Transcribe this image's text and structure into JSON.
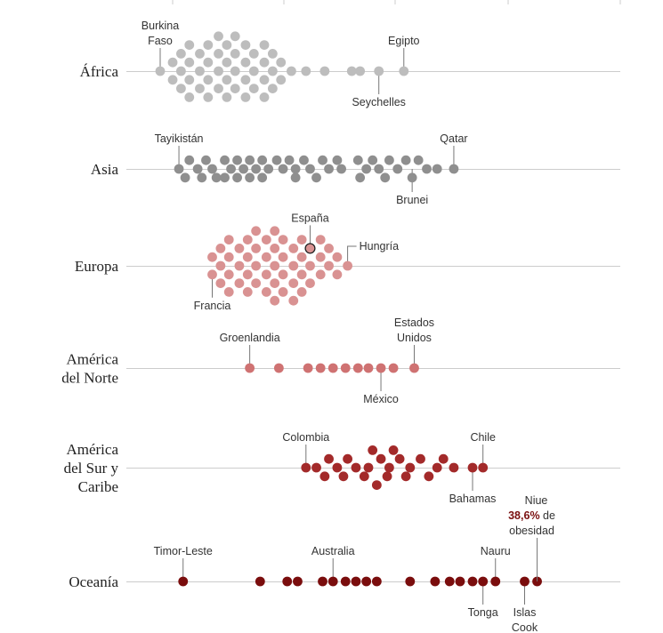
{
  "colors": {
    "africa": "#bdbdbd",
    "asia": "#8f8f8f",
    "europa": "#d99292",
    "america_norte": "#cf7272",
    "america_sur": "#a32a2a",
    "oceania": "#7a0d0d",
    "axis": "#cccccc"
  },
  "chart_data": {
    "type": "beeswarm",
    "title": "",
    "xlabel": "",
    "ylabel": "",
    "note": "",
    "annotation": {
      "country": "Niue",
      "value_text": "38,6%",
      "suffix_text": "de obesidad"
    },
    "regions": [
      {
        "name_lines": [
          "África"
        ],
        "color": "#bdbdbd",
        "points": [
          {
            "x": 3.0,
            "y": 0
          },
          {
            "x": 3.6,
            "y": 1
          },
          {
            "x": 3.6,
            "y": -1
          },
          {
            "x": 4.0,
            "y": 2
          },
          {
            "x": 4.0,
            "y": 0
          },
          {
            "x": 4.0,
            "y": -2
          },
          {
            "x": 4.4,
            "y": 3
          },
          {
            "x": 4.4,
            "y": 1
          },
          {
            "x": 4.4,
            "y": -1
          },
          {
            "x": 4.4,
            "y": -3
          },
          {
            "x": 4.9,
            "y": 2
          },
          {
            "x": 4.9,
            "y": 0
          },
          {
            "x": 4.9,
            "y": -2
          },
          {
            "x": 5.3,
            "y": 3
          },
          {
            "x": 5.3,
            "y": 1
          },
          {
            "x": 5.3,
            "y": -1
          },
          {
            "x": 5.3,
            "y": -3
          },
          {
            "x": 5.8,
            "y": 4
          },
          {
            "x": 5.8,
            "y": 2
          },
          {
            "x": 5.8,
            "y": 0
          },
          {
            "x": 5.8,
            "y": -2
          },
          {
            "x": 6.2,
            "y": 3
          },
          {
            "x": 6.2,
            "y": 1
          },
          {
            "x": 6.2,
            "y": -1
          },
          {
            "x": 6.2,
            "y": -3
          },
          {
            "x": 6.6,
            "y": 4
          },
          {
            "x": 6.6,
            "y": 2
          },
          {
            "x": 6.6,
            "y": 0
          },
          {
            "x": 6.6,
            "y": -2
          },
          {
            "x": 7.1,
            "y": 3
          },
          {
            "x": 7.1,
            "y": 1
          },
          {
            "x": 7.1,
            "y": -1
          },
          {
            "x": 7.1,
            "y": -3
          },
          {
            "x": 7.5,
            "y": 2
          },
          {
            "x": 7.5,
            "y": 0
          },
          {
            "x": 7.5,
            "y": -2
          },
          {
            "x": 8.0,
            "y": 3
          },
          {
            "x": 8.0,
            "y": 1
          },
          {
            "x": 8.0,
            "y": -1
          },
          {
            "x": 8.0,
            "y": -3
          },
          {
            "x": 8.4,
            "y": 2
          },
          {
            "x": 8.4,
            "y": 0
          },
          {
            "x": 8.4,
            "y": -2
          },
          {
            "x": 8.8,
            "y": 1
          },
          {
            "x": 8.8,
            "y": -1
          },
          {
            "x": 9.3,
            "y": 0
          },
          {
            "x": 10.0,
            "y": 0
          },
          {
            "x": 10.9,
            "y": 0
          },
          {
            "x": 12.2,
            "y": 0
          },
          {
            "x": 12.6,
            "y": 0
          },
          {
            "x": 13.5,
            "y": 0
          },
          {
            "x": 14.7,
            "y": 0
          }
        ],
        "labels": [
          {
            "text_lines": [
              "Burkina",
              "Faso"
            ],
            "x": 3.0,
            "pos": "above"
          },
          {
            "text_lines": [
              "Egipto"
            ],
            "x": 14.7,
            "pos": "above"
          },
          {
            "text_lines": [
              "Seychelles"
            ],
            "x": 13.5,
            "pos": "below"
          }
        ]
      },
      {
        "name_lines": [
          "Asia"
        ],
        "color": "#8f8f8f",
        "points": [
          {
            "x": 3.9,
            "y": 0
          },
          {
            "x": 4.2,
            "y": -1
          },
          {
            "x": 4.4,
            "y": 1
          },
          {
            "x": 4.8,
            "y": 0
          },
          {
            "x": 5.0,
            "y": -1
          },
          {
            "x": 5.2,
            "y": 1
          },
          {
            "x": 5.5,
            "y": 0
          },
          {
            "x": 5.7,
            "y": -1
          },
          {
            "x": 6.1,
            "y": 1
          },
          {
            "x": 6.1,
            "y": -1
          },
          {
            "x": 6.4,
            "y": 0
          },
          {
            "x": 6.7,
            "y": 1
          },
          {
            "x": 6.7,
            "y": -1
          },
          {
            "x": 7.0,
            "y": 0
          },
          {
            "x": 7.3,
            "y": 1
          },
          {
            "x": 7.3,
            "y": -1
          },
          {
            "x": 7.6,
            "y": 0
          },
          {
            "x": 7.9,
            "y": 1
          },
          {
            "x": 7.9,
            "y": -1
          },
          {
            "x": 8.2,
            "y": 0
          },
          {
            "x": 8.6,
            "y": 1
          },
          {
            "x": 8.9,
            "y": 0
          },
          {
            "x": 9.2,
            "y": 1
          },
          {
            "x": 9.5,
            "y": 0
          },
          {
            "x": 9.5,
            "y": -1
          },
          {
            "x": 9.9,
            "y": 1
          },
          {
            "x": 10.2,
            "y": 0
          },
          {
            "x": 10.5,
            "y": -1
          },
          {
            "x": 10.8,
            "y": 1
          },
          {
            "x": 11.1,
            "y": 0
          },
          {
            "x": 11.5,
            "y": 1
          },
          {
            "x": 11.7,
            "y": 0
          },
          {
            "x": 12.5,
            "y": 1
          },
          {
            "x": 12.6,
            "y": -1
          },
          {
            "x": 12.9,
            "y": 0
          },
          {
            "x": 13.2,
            "y": 1
          },
          {
            "x": 13.5,
            "y": 0
          },
          {
            "x": 13.8,
            "y": -1
          },
          {
            "x": 14.0,
            "y": 1
          },
          {
            "x": 14.4,
            "y": 0
          },
          {
            "x": 14.8,
            "y": 1
          },
          {
            "x": 15.1,
            "y": -1
          },
          {
            "x": 15.4,
            "y": 1
          },
          {
            "x": 15.8,
            "y": 0
          },
          {
            "x": 16.3,
            "y": 0
          },
          {
            "x": 17.1,
            "y": 0
          }
        ],
        "labels": [
          {
            "text_lines": [
              "Tayikistán"
            ],
            "x": 3.9,
            "pos": "above"
          },
          {
            "text_lines": [
              "Qatar"
            ],
            "x": 17.1,
            "pos": "above"
          },
          {
            "text_lines": [
              "Brunei"
            ],
            "x": 15.1,
            "pos": "below"
          }
        ]
      },
      {
        "name_lines": [
          "Europa"
        ],
        "color": "#d99292",
        "points": [
          {
            "x": 5.5,
            "y": 1
          },
          {
            "x": 5.5,
            "y": -1
          },
          {
            "x": 5.9,
            "y": 2
          },
          {
            "x": 5.9,
            "y": 0
          },
          {
            "x": 5.9,
            "y": -2
          },
          {
            "x": 6.3,
            "y": 3
          },
          {
            "x": 6.3,
            "y": 1
          },
          {
            "x": 6.3,
            "y": -1
          },
          {
            "x": 6.3,
            "y": -3
          },
          {
            "x": 6.8,
            "y": 2
          },
          {
            "x": 6.8,
            "y": 0
          },
          {
            "x": 6.8,
            "y": -2
          },
          {
            "x": 7.2,
            "y": 3
          },
          {
            "x": 7.2,
            "y": 1
          },
          {
            "x": 7.2,
            "y": -1
          },
          {
            "x": 7.2,
            "y": -3
          },
          {
            "x": 7.6,
            "y": 4
          },
          {
            "x": 7.6,
            "y": 2
          },
          {
            "x": 7.6,
            "y": 0
          },
          {
            "x": 7.6,
            "y": -2
          },
          {
            "x": 8.1,
            "y": 3
          },
          {
            "x": 8.1,
            "y": 1
          },
          {
            "x": 8.1,
            "y": -1
          },
          {
            "x": 8.1,
            "y": -3
          },
          {
            "x": 8.5,
            "y": 4
          },
          {
            "x": 8.5,
            "y": 2
          },
          {
            "x": 8.5,
            "y": 0
          },
          {
            "x": 8.5,
            "y": -2
          },
          {
            "x": 8.5,
            "y": -4
          },
          {
            "x": 8.9,
            "y": 3
          },
          {
            "x": 8.9,
            "y": 1
          },
          {
            "x": 8.9,
            "y": -1
          },
          {
            "x": 8.9,
            "y": -3
          },
          {
            "x": 9.4,
            "y": 2
          },
          {
            "x": 9.4,
            "y": 0
          },
          {
            "x": 9.4,
            "y": -2
          },
          {
            "x": 9.4,
            "y": -4
          },
          {
            "x": 9.8,
            "y": 3
          },
          {
            "x": 9.8,
            "y": 1
          },
          {
            "x": 9.8,
            "y": -1
          },
          {
            "x": 9.8,
            "y": -3
          },
          {
            "x": 10.2,
            "y": 2
          },
          {
            "x": 10.2,
            "y": 0
          },
          {
            "x": 10.2,
            "y": -2
          },
          {
            "x": 10.7,
            "y": 3
          },
          {
            "x": 10.7,
            "y": 1
          },
          {
            "x": 10.7,
            "y": -1
          },
          {
            "x": 11.1,
            "y": 2
          },
          {
            "x": 11.1,
            "y": 0
          },
          {
            "x": 11.5,
            "y": 1
          },
          {
            "x": 11.5,
            "y": -1
          },
          {
            "x": 12.0,
            "y": 0
          }
        ],
        "labels": [
          {
            "text_lines": [
              "España"
            ],
            "x": 10.2,
            "y": 2,
            "pos": "above",
            "highlight": true
          },
          {
            "text_lines": [
              "Hungría"
            ],
            "x": 12.0,
            "pos": "right"
          },
          {
            "text_lines": [
              "Francia"
            ],
            "x": 5.5,
            "y": -1,
            "pos": "below"
          }
        ]
      },
      {
        "name_lines": [
          "América",
          "del Norte"
        ],
        "color": "#cf7272",
        "points": [
          {
            "x": 7.3,
            "y": 0
          },
          {
            "x": 8.7,
            "y": 0
          },
          {
            "x": 10.1,
            "y": 0
          },
          {
            "x": 10.7,
            "y": 0
          },
          {
            "x": 11.3,
            "y": 0
          },
          {
            "x": 11.9,
            "y": 0
          },
          {
            "x": 12.5,
            "y": 0
          },
          {
            "x": 13.0,
            "y": 0
          },
          {
            "x": 13.6,
            "y": 0
          },
          {
            "x": 14.2,
            "y": 0
          },
          {
            "x": 15.2,
            "y": 0
          }
        ],
        "labels": [
          {
            "text_lines": [
              "Groenlandia"
            ],
            "x": 7.3,
            "pos": "above"
          },
          {
            "text_lines": [
              "Estados",
              "Unidos"
            ],
            "x": 15.2,
            "pos": "above"
          },
          {
            "text_lines": [
              "México"
            ],
            "x": 13.6,
            "pos": "below"
          }
        ]
      },
      {
        "name_lines": [
          "América",
          "del Sur y",
          "Caribe"
        ],
        "color": "#a32a2a",
        "points": [
          {
            "x": 10.0,
            "y": 0
          },
          {
            "x": 10.5,
            "y": 0
          },
          {
            "x": 10.9,
            "y": -1
          },
          {
            "x": 11.1,
            "y": 1
          },
          {
            "x": 11.5,
            "y": 0
          },
          {
            "x": 11.8,
            "y": -1
          },
          {
            "x": 12.0,
            "y": 1
          },
          {
            "x": 12.4,
            "y": 0
          },
          {
            "x": 12.8,
            "y": -1
          },
          {
            "x": 13.0,
            "y": 0
          },
          {
            "x": 13.2,
            "y": 2
          },
          {
            "x": 13.4,
            "y": -2
          },
          {
            "x": 13.6,
            "y": 1
          },
          {
            "x": 13.9,
            "y": -1
          },
          {
            "x": 14.0,
            "y": 0
          },
          {
            "x": 14.2,
            "y": 2
          },
          {
            "x": 14.5,
            "y": 1
          },
          {
            "x": 14.8,
            "y": -1
          },
          {
            "x": 15.0,
            "y": 0
          },
          {
            "x": 15.5,
            "y": 1
          },
          {
            "x": 15.9,
            "y": -1
          },
          {
            "x": 16.3,
            "y": 0
          },
          {
            "x": 16.6,
            "y": 1
          },
          {
            "x": 17.1,
            "y": 0
          },
          {
            "x": 18.0,
            "y": 0
          },
          {
            "x": 18.5,
            "y": 0
          }
        ],
        "labels": [
          {
            "text_lines": [
              "Colombia"
            ],
            "x": 10.0,
            "pos": "above"
          },
          {
            "text_lines": [
              "Chile"
            ],
            "x": 18.5,
            "pos": "above"
          },
          {
            "text_lines": [
              "Bahamas"
            ],
            "x": 18.0,
            "pos": "below"
          }
        ]
      },
      {
        "name_lines": [
          "Oceanía"
        ],
        "color": "#7a0d0d",
        "points": [
          {
            "x": 4.1,
            "y": 0
          },
          {
            "x": 7.8,
            "y": 0
          },
          {
            "x": 9.1,
            "y": 0
          },
          {
            "x": 9.6,
            "y": 0
          },
          {
            "x": 10.8,
            "y": 0
          },
          {
            "x": 11.3,
            "y": 0
          },
          {
            "x": 11.9,
            "y": 0
          },
          {
            "x": 12.4,
            "y": 0
          },
          {
            "x": 12.9,
            "y": 0
          },
          {
            "x": 13.4,
            "y": 0
          },
          {
            "x": 15.0,
            "y": 0
          },
          {
            "x": 16.2,
            "y": 0
          },
          {
            "x": 16.9,
            "y": 0
          },
          {
            "x": 17.4,
            "y": 0
          },
          {
            "x": 18.0,
            "y": 0
          },
          {
            "x": 18.5,
            "y": 0
          },
          {
            "x": 19.1,
            "y": 0
          },
          {
            "x": 20.5,
            "y": 0
          },
          {
            "x": 21.1,
            "y": 0
          }
        ],
        "labels": [
          {
            "text_lines": [
              "Timor-Leste"
            ],
            "x": 4.1,
            "pos": "above"
          },
          {
            "text_lines": [
              "Australia"
            ],
            "x": 11.3,
            "pos": "above"
          },
          {
            "text_lines": [
              "Nauru"
            ],
            "x": 19.1,
            "pos": "above"
          },
          {
            "text_lines": [
              "Tonga"
            ],
            "x": 18.5,
            "pos": "below"
          },
          {
            "text_lines": [
              "Islas",
              "Cook"
            ],
            "x": 20.5,
            "pos": "below"
          }
        ]
      }
    ]
  }
}
